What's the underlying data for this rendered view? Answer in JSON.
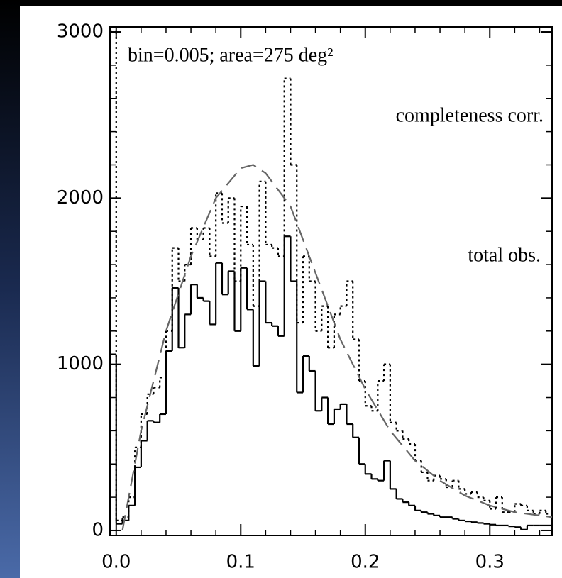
{
  "chart_data": {
    "type": "histogram",
    "annotation": "bin=0.005;   area=275 deg²",
    "bins": [
      -0.005,
      0,
      0.005,
      0.01,
      0.015,
      0.02,
      0.025,
      0.03,
      0.035,
      0.04,
      0.045,
      0.05,
      0.055,
      0.06,
      0.065,
      0.07,
      0.075,
      0.08,
      0.085,
      0.09,
      0.095,
      0.1,
      0.105,
      0.11,
      0.115,
      0.12,
      0.125,
      0.13,
      0.135,
      0.14,
      0.145,
      0.15,
      0.155,
      0.16,
      0.165,
      0.17,
      0.175,
      0.18,
      0.185,
      0.19,
      0.195,
      0.2,
      0.205,
      0.21,
      0.215,
      0.22,
      0.225,
      0.23,
      0.235,
      0.24,
      0.245,
      0.25,
      0.255,
      0.26,
      0.265,
      0.27,
      0.275,
      0.28,
      0.285,
      0.29,
      0.295,
      0.3,
      0.305,
      0.31,
      0.315,
      0.32,
      0.325,
      0.33,
      0.335,
      0.34,
      0.345,
      0.35
    ],
    "series": [
      {
        "name": "total obs.",
        "color": "#000000",
        "style": "solid",
        "values": [
          1060,
          40,
          60,
          150,
          380,
          540,
          660,
          650,
          700,
          1080,
          1460,
          1100,
          1300,
          1480,
          1400,
          1380,
          1240,
          1610,
          1420,
          1560,
          1200,
          1580,
          1330,
          990,
          1500,
          1250,
          1230,
          1170,
          1770,
          1500,
          830,
          1050,
          960,
          720,
          800,
          640,
          730,
          760,
          640,
          560,
          400,
          340,
          310,
          300,
          420,
          250,
          190,
          170,
          150,
          120,
          110,
          100,
          90,
          80,
          80,
          70,
          60,
          55,
          50,
          45,
          40,
          35,
          30,
          30,
          25,
          20,
          5,
          30,
          30,
          30,
          30
        ]
      },
      {
        "name": "completeness corr.",
        "color": "#000000",
        "style": "dotted",
        "values": [
          3000,
          60,
          80,
          200,
          500,
          700,
          820,
          860,
          920,
          1200,
          1700,
          1500,
          1600,
          1820,
          1750,
          1820,
          1650,
          2030,
          1850,
          2000,
          1500,
          1950,
          1720,
          1350,
          2100,
          1720,
          1700,
          1650,
          2720,
          2200,
          1250,
          1650,
          1500,
          1200,
          1350,
          1100,
          1300,
          1350,
          1500,
          1150,
          900,
          750,
          720,
          900,
          1000,
          650,
          600,
          550,
          520,
          420,
          350,
          300,
          330,
          310,
          260,
          300,
          250,
          220,
          230,
          200,
          180,
          130,
          200,
          110,
          110,
          160,
          150,
          120,
          100,
          120,
          100
        ]
      }
    ],
    "model": {
      "color": "#666666",
      "style": "dashed",
      "x": [
        0.005,
        0.02,
        0.04,
        0.06,
        0.08,
        0.1,
        0.11,
        0.12,
        0.14,
        0.16,
        0.18,
        0.2,
        0.22,
        0.24,
        0.26,
        0.28,
        0.3,
        0.32,
        0.35
      ],
      "values": [
        0,
        600,
        1200,
        1650,
        2000,
        2180,
        2200,
        2150,
        1950,
        1550,
        1150,
        850,
        600,
        420,
        300,
        210,
        150,
        110,
        80
      ]
    },
    "xlim": [
      -0.005,
      0.35
    ],
    "ylim": [
      -30,
      3030
    ],
    "xticks": [
      {
        "value": 0,
        "label": "0.0"
      },
      {
        "value": 0.1,
        "label": "0.1"
      },
      {
        "value": 0.2,
        "label": "0.2"
      },
      {
        "value": 0.3,
        "label": "0.3"
      }
    ],
    "yticks": [
      0,
      1000,
      2000,
      3000
    ],
    "xminorticks": [
      0.02,
      0.04,
      0.06,
      0.08,
      0.12,
      0.14,
      0.16,
      0.18,
      0.22,
      0.24,
      0.26,
      0.28,
      0.32,
      0.34
    ],
    "yminorticks": [
      200,
      400,
      600,
      800,
      1200,
      1400,
      1600,
      1800,
      2200,
      2400,
      2600,
      2800
    ]
  }
}
